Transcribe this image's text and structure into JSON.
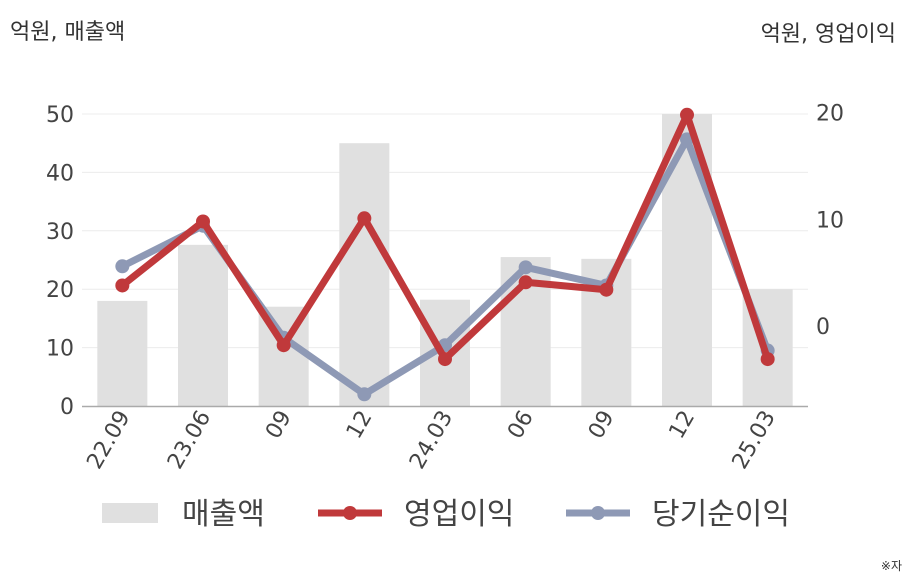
{
  "chart_data": {
    "type": "bar",
    "categories": [
      "22.09",
      "23.06",
      "09",
      "12",
      "24.03",
      "06",
      "09",
      "12",
      "25.03"
    ],
    "left_axis_unit": "억원, 매출액",
    "right_axis_unit": "억원, 영업이익",
    "y_left_ticks": [
      "0",
      "10",
      "20",
      "30",
      "40",
      "50"
    ],
    "y_right_ticks": [
      "0",
      "10",
      "20"
    ],
    "ylim_left": [
      0,
      50
    ],
    "ylim_right": [
      -7.5,
      21
    ],
    "series": [
      {
        "name": "매출액",
        "type": "bar",
        "axis": "left",
        "color": "#e0e0e0",
        "values": [
          18,
          27.6,
          17,
          45,
          18.2,
          25.5,
          25.2,
          50,
          20
        ]
      },
      {
        "name": "영업이익",
        "type": "line",
        "axis": "right",
        "color": "#c0393b",
        "values": [
          3.8,
          9.8,
          -1.8,
          10.1,
          -3.1,
          4.1,
          3.4,
          19.8,
          -3.1
        ]
      },
      {
        "name": "당기순이익",
        "type": "line",
        "axis": "right",
        "color": "#8e99b5",
        "values": [
          5.6,
          9.4,
          -1.1,
          -6.4,
          -1.8,
          5.5,
          3.8,
          17.5,
          -2.3
        ]
      }
    ],
    "legend": [
      "매출액",
      "영업이익",
      "당기순이익"
    ],
    "legend_position": "bottom",
    "grid": true,
    "footnote": "※자"
  }
}
